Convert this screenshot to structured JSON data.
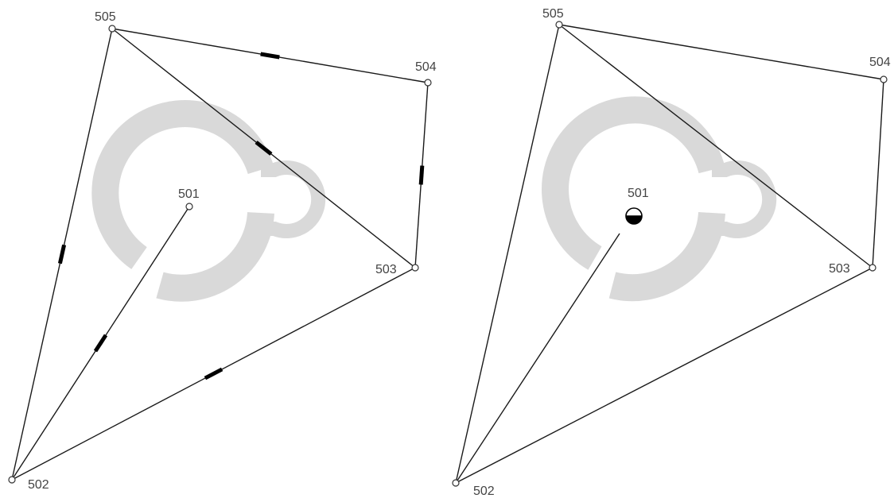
{
  "left_network": {
    "stations": [
      {
        "id": "505",
        "label": "505"
      },
      {
        "id": "504",
        "label": "504"
      },
      {
        "id": "501",
        "label": "501"
      },
      {
        "id": "503",
        "label": "503"
      },
      {
        "id": "502",
        "label": "502"
      }
    ],
    "connections": [
      {
        "from": "505",
        "to": "504",
        "observed": true
      },
      {
        "from": "505",
        "to": "503",
        "observed": true
      },
      {
        "from": "504",
        "to": "503",
        "observed": true
      },
      {
        "from": "505",
        "to": "502",
        "observed": true
      },
      {
        "from": "501",
        "to": "502",
        "observed": true
      },
      {
        "from": "503",
        "to": "502",
        "observed": true
      }
    ]
  },
  "right_network": {
    "stations": [
      {
        "id": "505",
        "label": "505"
      },
      {
        "id": "504",
        "label": "504"
      },
      {
        "id": "501",
        "label": "501",
        "marker": "half-filled-circle"
      },
      {
        "id": "503",
        "label": "503"
      },
      {
        "id": "502",
        "label": "502"
      }
    ],
    "connections": [
      {
        "from": "505",
        "to": "504",
        "observed": false
      },
      {
        "from": "505",
        "to": "503",
        "observed": false
      },
      {
        "from": "504",
        "to": "503",
        "observed": false
      },
      {
        "from": "505",
        "to": "502",
        "observed": false
      },
      {
        "from": "501",
        "to": "502",
        "observed": false
      },
      {
        "from": "503",
        "to": "502",
        "observed": false
      }
    ]
  },
  "colors": {
    "line": "#1a1a1a",
    "label": "#444444",
    "watermark": "#d9d9d9"
  },
  "icons": {
    "watermark": "logo-watermark-icon",
    "station": "station-circle-icon",
    "fixed_station": "half-filled-circle-icon"
  }
}
